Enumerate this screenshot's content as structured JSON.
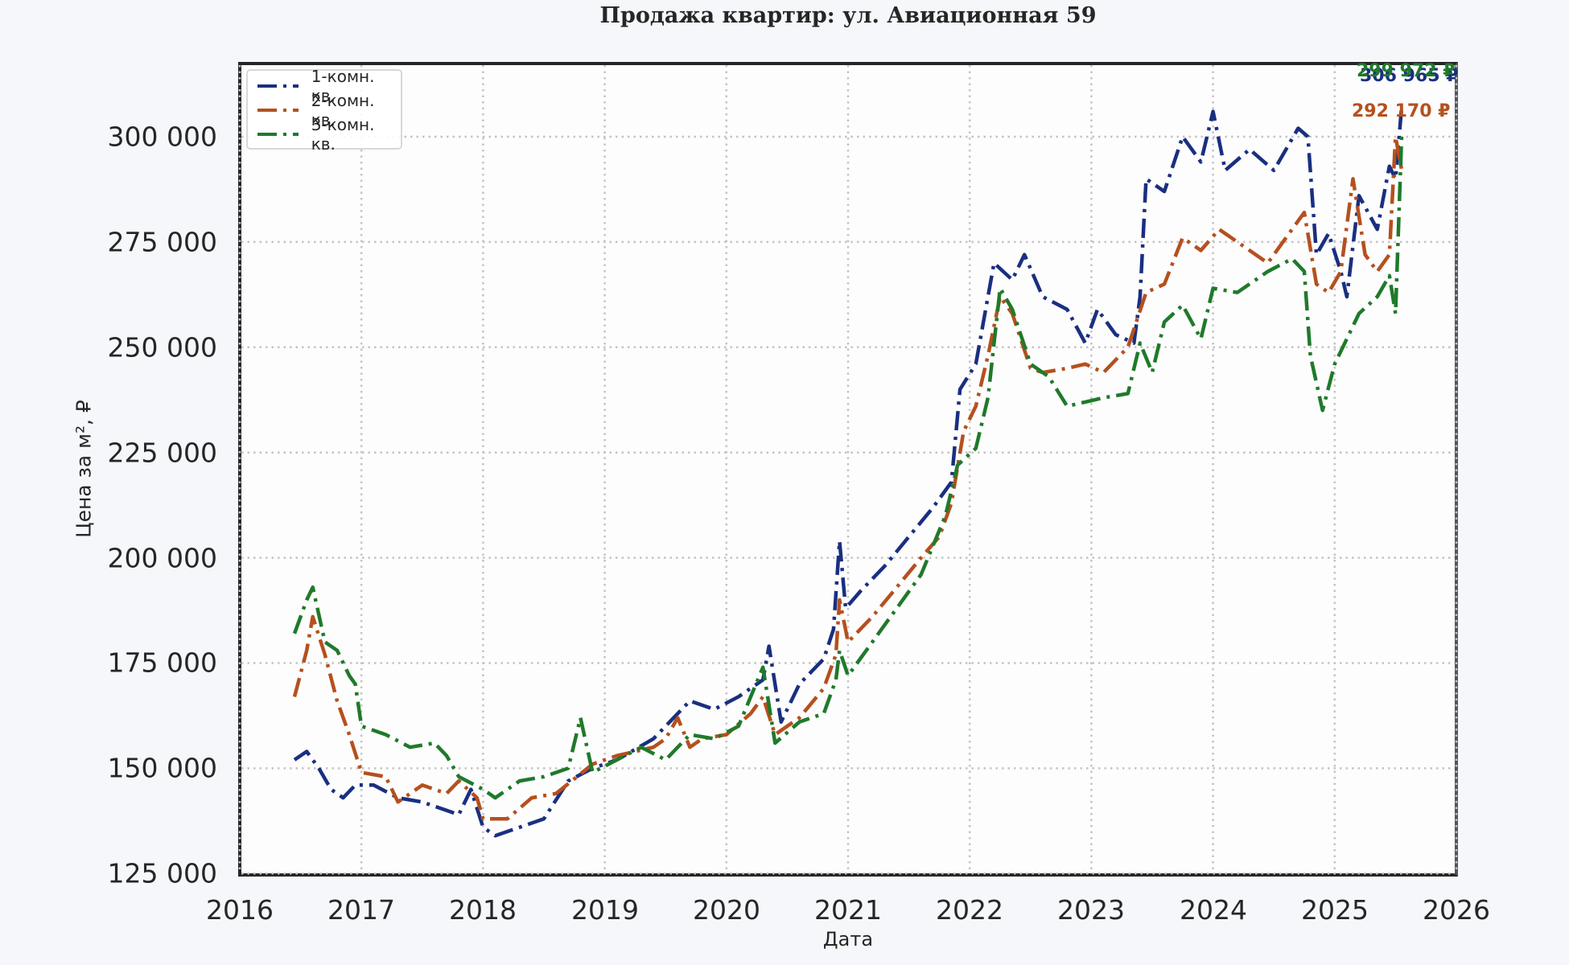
{
  "title": "Продажа квартир: ул. Авиационная 59",
  "axes": {
    "xlabel": "Дата",
    "ylabel": "Цена за м², ₽",
    "yticks": [
      "125 000",
      "150 000",
      "175 000",
      "200 000",
      "225 000",
      "250 000",
      "275 000",
      "300 000"
    ],
    "xticks": [
      "2016",
      "2017",
      "2018",
      "2019",
      "2020",
      "2021",
      "2022",
      "2023",
      "2024",
      "2025",
      "2026"
    ]
  },
  "legend": {
    "items": [
      {
        "label": "1-комн. кв.",
        "color": "#1a2f80"
      },
      {
        "label": "2-комн. кв.",
        "color": "#b5501e"
      },
      {
        "label": "3-комн. кв.",
        "color": "#1f7a2a"
      }
    ]
  },
  "annotations": {
    "series3_last": "299 972 ₽",
    "series1_last": "306 965 ₽",
    "series2_last": "292 170 ₽"
  },
  "chart_data": {
    "type": "line",
    "title": "Продажа квартир: ул. Авиационная 59",
    "xlabel": "Дата",
    "ylabel": "Цена за м², ₽",
    "xlim": [
      2016,
      2026
    ],
    "ylim": [
      125000,
      317000
    ],
    "grid": true,
    "legend_position": "upper left",
    "series": [
      {
        "name": "1-комн. кв.",
        "color": "#1a2f80",
        "last_value": 306965,
        "x": [
          2016.45,
          2016.55,
          2016.65,
          2016.75,
          2016.85,
          2016.95,
          2017.1,
          2017.3,
          2017.5,
          2017.7,
          2017.8,
          2017.9,
          2018.0,
          2018.1,
          2018.3,
          2018.5,
          2018.7,
          2018.9,
          2019.1,
          2019.4,
          2019.6,
          2019.7,
          2019.9,
          2020.1,
          2020.3,
          2020.35,
          2020.45,
          2020.6,
          2020.8,
          2020.88,
          2020.93,
          2020.98,
          2021.1,
          2021.3,
          2021.5,
          2021.7,
          2021.85,
          2021.92,
          2022.05,
          2022.2,
          2022.35,
          2022.45,
          2022.6,
          2022.8,
          2022.95,
          2023.05,
          2023.2,
          2023.35,
          2023.4,
          2023.45,
          2023.6,
          2023.75,
          2023.9,
          2024.0,
          2024.1,
          2024.3,
          2024.5,
          2024.7,
          2024.78,
          2024.85,
          2024.95,
          2025.05,
          2025.1,
          2025.2,
          2025.35,
          2025.45,
          2025.5,
          2025.55
        ],
        "values": [
          152000,
          154000,
          150000,
          145000,
          143000,
          146000,
          146000,
          143000,
          142000,
          140000,
          139000,
          145000,
          136000,
          134000,
          136000,
          138000,
          147000,
          150000,
          152000,
          157000,
          163000,
          166000,
          164000,
          167000,
          171000,
          179000,
          161000,
          170000,
          176000,
          183000,
          204000,
          188000,
          192000,
          198000,
          205000,
          212000,
          218000,
          240000,
          246000,
          270000,
          266000,
          272000,
          262000,
          259000,
          251000,
          259000,
          253000,
          251000,
          262000,
          290000,
          287000,
          300000,
          294000,
          306000,
          292000,
          297000,
          292000,
          302000,
          300000,
          272000,
          277000,
          268000,
          262000,
          286000,
          278000,
          293000,
          290000,
          306965
        ]
      },
      {
        "name": "2-комн. кв.",
        "color": "#b5501e",
        "last_value": 292170,
        "x": [
          2016.45,
          2016.55,
          2016.6,
          2016.7,
          2016.8,
          2016.9,
          2017.0,
          2017.2,
          2017.3,
          2017.5,
          2017.7,
          2017.8,
          2017.95,
          2018.0,
          2018.2,
          2018.4,
          2018.6,
          2018.9,
          2019.1,
          2019.4,
          2019.5,
          2019.6,
          2019.7,
          2019.8,
          2020.0,
          2020.2,
          2020.3,
          2020.4,
          2020.6,
          2020.8,
          2020.9,
          2020.93,
          2021.0,
          2021.2,
          2021.4,
          2021.6,
          2021.75,
          2021.85,
          2021.95,
          2022.05,
          2022.15,
          2022.25,
          2022.35,
          2022.5,
          2022.6,
          2022.8,
          2022.95,
          2023.1,
          2023.3,
          2023.45,
          2023.6,
          2023.75,
          2023.9,
          2024.05,
          2024.25,
          2024.45,
          2024.6,
          2024.75,
          2024.85,
          2024.95,
          2025.05,
          2025.15,
          2025.25,
          2025.35,
          2025.45,
          2025.5,
          2025.55
        ],
        "values": [
          167000,
          178000,
          186000,
          177000,
          166000,
          158000,
          149000,
          148000,
          142000,
          146000,
          144000,
          147000,
          143000,
          138000,
          138000,
          143000,
          144000,
          151000,
          153000,
          155000,
          157000,
          162000,
          155000,
          157000,
          158000,
          163000,
          167000,
          158000,
          162000,
          169000,
          177000,
          190000,
          180000,
          186000,
          193000,
          200000,
          205000,
          213000,
          230000,
          236000,
          248000,
          262000,
          258000,
          245000,
          244000,
          245000,
          246000,
          244000,
          250000,
          263000,
          265000,
          276000,
          273000,
          278000,
          274000,
          270000,
          276000,
          282000,
          265000,
          263000,
          268000,
          290000,
          272000,
          268000,
          272000,
          300000,
          292170
        ]
      },
      {
        "name": "3-комн. кв.",
        "color": "#1f7a2a",
        "last_value": 299972,
        "x": [
          2016.45,
          2016.55,
          2016.6,
          2016.7,
          2016.8,
          2016.9,
          2016.95,
          2017.0,
          2017.2,
          2017.4,
          2017.6,
          2017.7,
          2017.8,
          2018.0,
          2018.1,
          2018.3,
          2018.5,
          2018.7,
          2018.8,
          2018.9,
          2019.1,
          2019.3,
          2019.5,
          2019.7,
          2019.9,
          2020.1,
          2020.3,
          2020.4,
          2020.6,
          2020.8,
          2020.9,
          2020.93,
          2021.0,
          2021.2,
          2021.4,
          2021.6,
          2021.8,
          2021.9,
          2022.05,
          2022.15,
          2022.25,
          2022.35,
          2022.5,
          2022.65,
          2022.8,
          2022.95,
          2023.1,
          2023.3,
          2023.4,
          2023.5,
          2023.6,
          2023.75,
          2023.9,
          2024.0,
          2024.2,
          2024.45,
          2024.65,
          2024.75,
          2024.8,
          2024.9,
          2025.0,
          2025.1,
          2025.2,
          2025.35,
          2025.45,
          2025.5,
          2025.55
        ],
        "values": [
          182000,
          190000,
          193000,
          180000,
          178000,
          172000,
          170000,
          160000,
          158000,
          155000,
          156000,
          153000,
          148000,
          145000,
          143000,
          147000,
          148000,
          150000,
          162000,
          149000,
          152000,
          155000,
          152000,
          158000,
          157000,
          160000,
          174000,
          156000,
          161000,
          163000,
          171000,
          178000,
          172000,
          180000,
          188000,
          196000,
          210000,
          222000,
          226000,
          238000,
          264000,
          259000,
          246000,
          243000,
          236000,
          237000,
          238000,
          239000,
          251000,
          244000,
          256000,
          260000,
          252000,
          264000,
          263000,
          268000,
          271000,
          268000,
          248000,
          235000,
          246000,
          252000,
          258000,
          262000,
          267000,
          258000,
          299972
        ]
      }
    ]
  }
}
